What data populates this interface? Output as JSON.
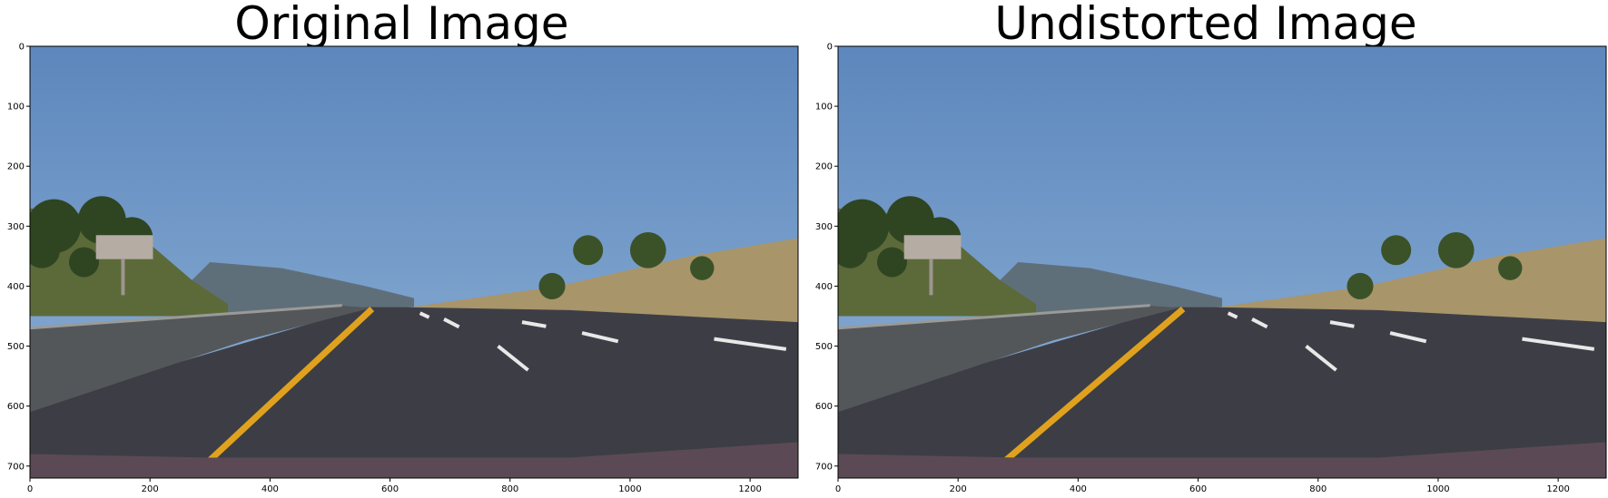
{
  "panels": [
    {
      "title": "Original Image",
      "x_ticks": [
        "0",
        "200",
        "400",
        "600",
        "800",
        "1000",
        "1200"
      ],
      "y_ticks": [
        "0",
        "100",
        "200",
        "300",
        "400",
        "500",
        "600",
        "700"
      ],
      "x_range": [
        0,
        1280
      ],
      "y_range": [
        0,
        720
      ],
      "scene": "highway-road"
    },
    {
      "title": "Undistorted Image",
      "x_ticks": [
        "0",
        "200",
        "400",
        "600",
        "800",
        "1000",
        "1200"
      ],
      "y_ticks": [
        "0",
        "100",
        "200",
        "300",
        "400",
        "500",
        "600",
        "700"
      ],
      "x_range": [
        0,
        1280
      ],
      "y_range": [
        0,
        720
      ],
      "scene": "highway-road"
    }
  ],
  "colors": {
    "sky_top": "#5d87bd",
    "sky_bottom": "#8fb2d6",
    "road": "#3d3e45",
    "lane_yellow": "#e0a21e",
    "hill": "#a9956a",
    "hood": "#5b4a55"
  }
}
